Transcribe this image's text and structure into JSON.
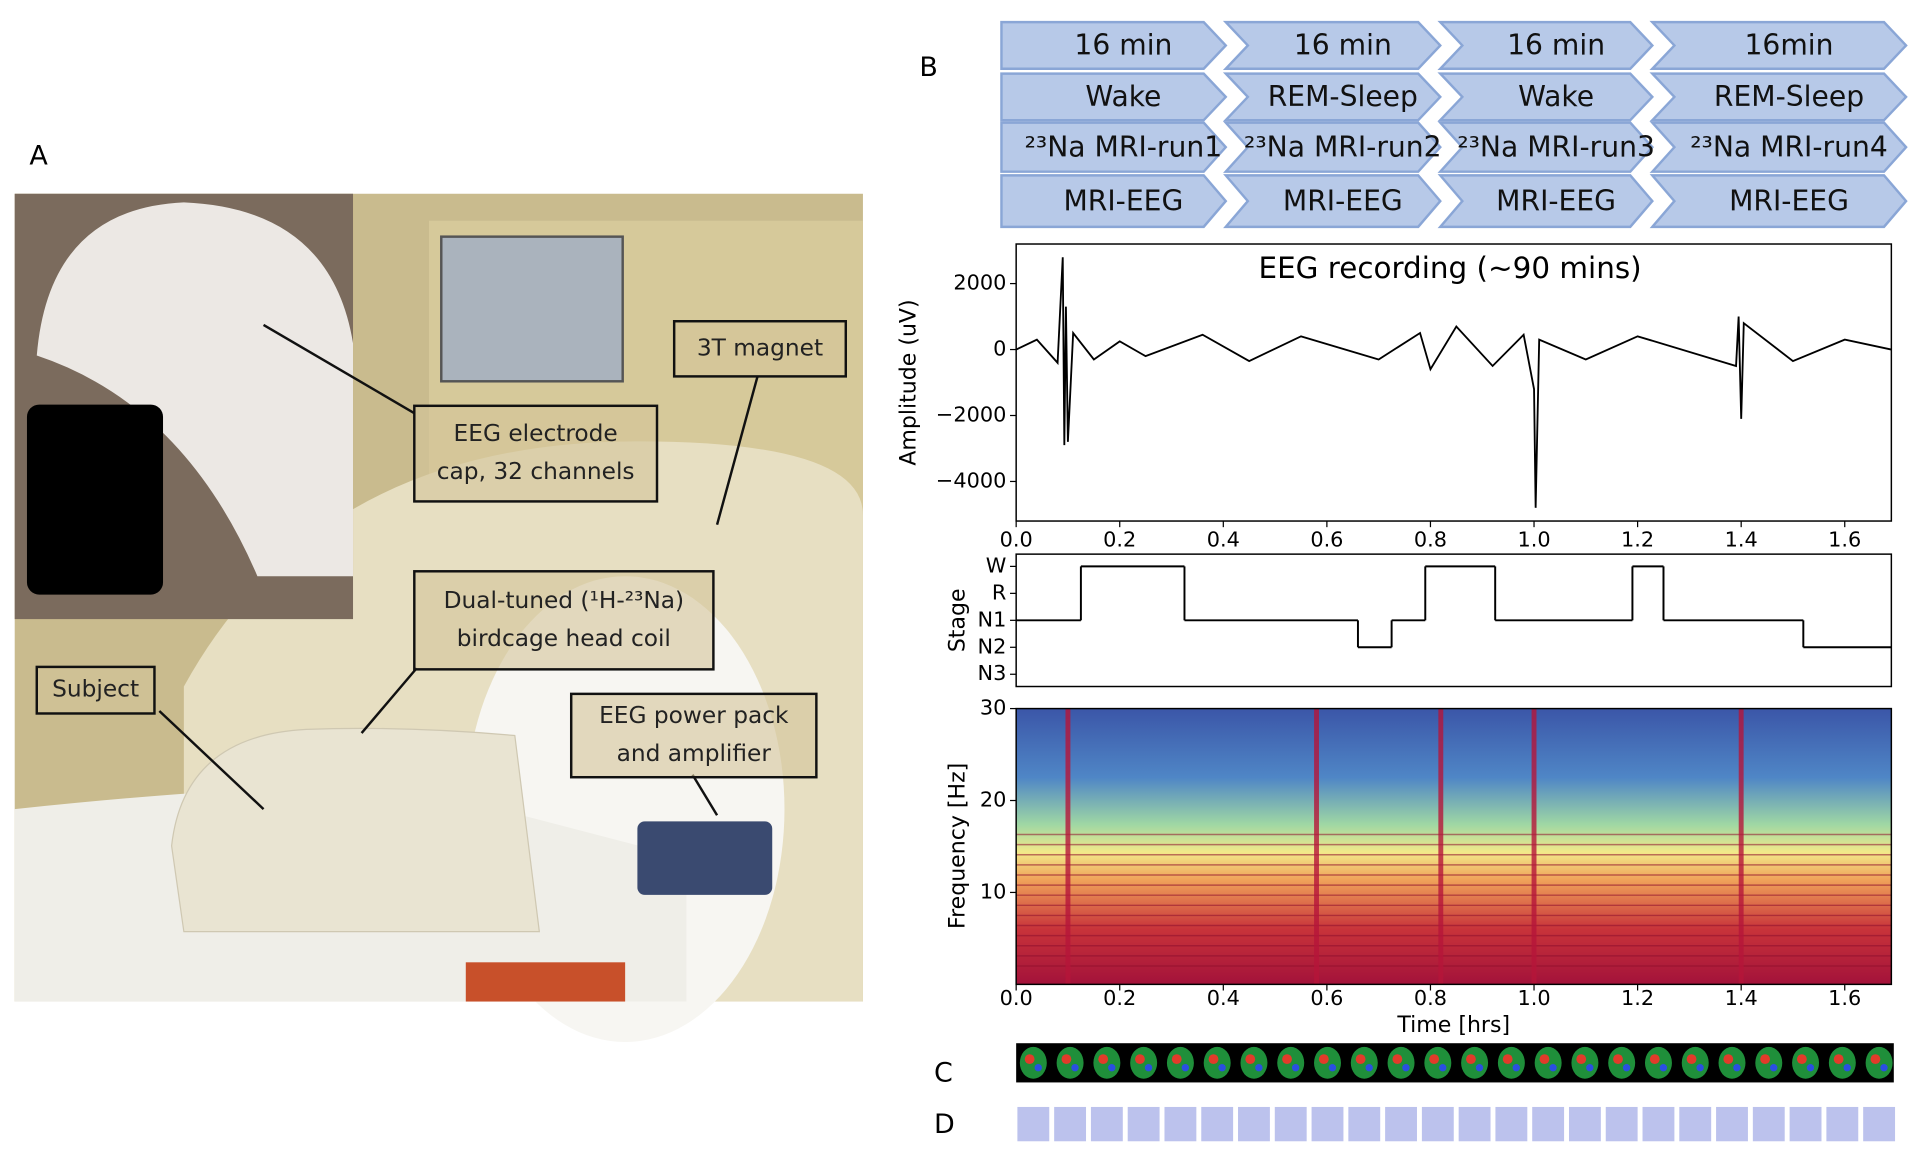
{
  "panel_labels": {
    "a": "A",
    "b": "B",
    "c": "C",
    "d": "D"
  },
  "photo": {
    "annotations": [
      [
        "EEG electrode",
        "cap, 32 channels"
      ],
      [
        "3T magnet"
      ],
      [
        "Dual-tuned (¹H-²³Na)",
        "birdcage head coil"
      ],
      [
        "Subject"
      ],
      [
        "EEG power pack",
        "and amplifier"
      ]
    ]
  },
  "timeline": {
    "rows": [
      [
        "16 min",
        "16 min",
        "16 min",
        "16min"
      ],
      [
        "Wake",
        "REM-Sleep",
        "Wake",
        "REM-Sleep"
      ],
      [
        "²³Na MRI-run1",
        "²³Na MRI-run2",
        "²³Na MRI-run3",
        "²³Na MRI-run4"
      ],
      [
        "MRI-EEG",
        "MRI-EEG",
        "MRI-EEG",
        "MRI-EEG"
      ]
    ]
  },
  "charts": [
    {
      "type": "line",
      "title": "EEG recording (~90 mins)",
      "ylabel": "Amplitude (uV)",
      "color": "#000000",
      "xlim": [
        0,
        1.69
      ],
      "ylim": [
        -5200,
        3200
      ],
      "xticks": [
        {
          "value": 0,
          "label": "0.0"
        },
        0.2,
        0.4,
        0.6,
        0.8,
        {
          "value": 1,
          "label": "1.0"
        },
        1.2,
        1.4,
        1.6
      ],
      "yticks": [
        {
          "value": -4000,
          "label": "−4000"
        },
        {
          "value": -2000,
          "label": "−2000"
        },
        0,
        2000
      ],
      "x": [
        0,
        0.04,
        0.08,
        0.09,
        0.093,
        0.096,
        0.1,
        0.11,
        0.15,
        0.2,
        0.25,
        0.36,
        0.45,
        0.55,
        0.7,
        0.78,
        0.8,
        0.85,
        0.92,
        0.98,
        1.0,
        1.003,
        1.01,
        1.1,
        1.2,
        1.39,
        1.395,
        1.4,
        1.405,
        1.5,
        1.6,
        1.69
      ],
      "values": [
        0,
        300,
        -400,
        2800,
        -2900,
        1300,
        -2800,
        500,
        -300,
        250,
        -200,
        450,
        -350,
        400,
        -300,
        500,
        -600,
        700,
        -500,
        450,
        -1200,
        -4800,
        300,
        -300,
        400,
        -500,
        1000,
        -2100,
        800,
        -350,
        300,
        0
      ]
    },
    {
      "type": "step",
      "ylabel": "Stage",
      "xlim": [
        0,
        1.69
      ],
      "levels": [
        "W",
        "R",
        "N1",
        "N2",
        "N3"
      ],
      "x": [
        0,
        0.125,
        0.325,
        0.66,
        0.725,
        0.79,
        0.925,
        1.19,
        1.25,
        1.52,
        1.69
      ],
      "values": [
        "N1",
        "W",
        "N1",
        "N2",
        "N1",
        "W",
        "N1",
        "W",
        "N1",
        "N2"
      ]
    },
    {
      "type": "heatmap",
      "ylabel": "Frequency [Hz]",
      "xlabel": "Time [hrs]",
      "xlim": [
        0,
        1.69
      ],
      "ylim": [
        0,
        30
      ],
      "xticks": [
        {
          "value": 0,
          "label": "0.0"
        },
        0.2,
        0.4,
        0.6,
        0.8,
        {
          "value": 1,
          "label": "1.0"
        },
        1.2,
        1.4,
        1.6
      ],
      "yticks": [
        10,
        20,
        30
      ]
    }
  ]
}
